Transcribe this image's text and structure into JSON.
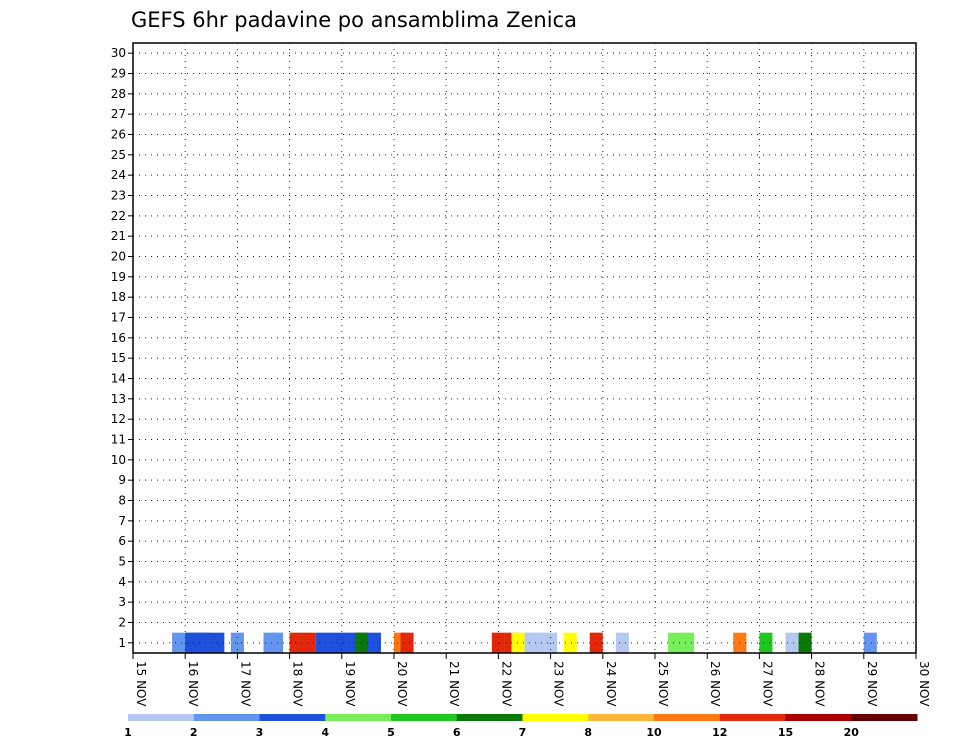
{
  "chart_data": {
    "type": "heatmap",
    "title": "GEFS 6hr padavine po ansamblima Zenica",
    "xlabel": "",
    "ylabel": "",
    "x_ticks": [
      "15 NOV",
      "16 NOV",
      "17 NOV",
      "18 NOV",
      "19 NOV",
      "20 NOV",
      "21 NOV",
      "22 NOV",
      "23 NOV",
      "24 NOV",
      "25 NOV",
      "26 NOV",
      "27 NOV",
      "28 NOV",
      "29 NOV",
      "30 NOV"
    ],
    "y_ticks": [
      "1",
      "2",
      "3",
      "4",
      "5",
      "6",
      "7",
      "8",
      "9",
      "10",
      "11",
      "12",
      "13",
      "14",
      "15",
      "16",
      "17",
      "18",
      "19",
      "20",
      "21",
      "22",
      "23",
      "24",
      "25",
      "26",
      "27",
      "28",
      "29",
      "30"
    ],
    "ensemble_members": 30,
    "time_steps_per_day": 4,
    "grid": true,
    "colorbar": {
      "position": "bottom",
      "labels": [
        "1",
        "2",
        "3",
        "4",
        "5",
        "6",
        "7",
        "8",
        "10",
        "12",
        "15",
        "20"
      ],
      "colors": [
        "#b4c8f0",
        "#6495ed",
        "#1e50dc",
        "#78ee5a",
        "#1ec81e",
        "#0a780a",
        "#ffff00",
        "#ffb43c",
        "#ff7814",
        "#e1280a",
        "#aa0000",
        "#640000"
      ]
    },
    "values": [
      [
        1,
        "3:2.5",
        3
      ],
      [
        1,
        "4:3",
        3
      ],
      [
        1,
        "7.5:2",
        1
      ],
      [
        1,
        "10:2",
        1
      ],
      [
        1,
        "10.5:2",
        1
      ],
      [
        1,
        "12:12",
        2
      ],
      [
        1,
        "14:3",
        5
      ],
      [
        1,
        "17:6",
        1
      ],
      [
        1,
        "20:11",
        1
      ],
      [
        1,
        "20.5:13",
        1
      ],
      [
        1,
        "27.5:12",
        1
      ],
      [
        1,
        "28.5:12",
        1
      ],
      [
        1,
        "29:7",
        1
      ],
      [
        1,
        "30:1",
        1
      ],
      [
        1,
        "30.5:1",
        1
      ],
      [
        1,
        "31.5:1",
        1
      ],
      [
        1,
        "33:7",
        1
      ],
      [
        1,
        "35:12",
        1
      ],
      [
        1,
        "37:1",
        1
      ],
      [
        1,
        "41:4",
        1
      ],
      [
        1,
        "42:4",
        1
      ],
      [
        1,
        "46:11",
        1
      ],
      [
        1,
        "48:5",
        1
      ],
      [
        1,
        "50:1",
        1
      ],
      [
        1,
        "51:6",
        1
      ],
      [
        1,
        "56:2",
        1
      ]
    ]
  }
}
